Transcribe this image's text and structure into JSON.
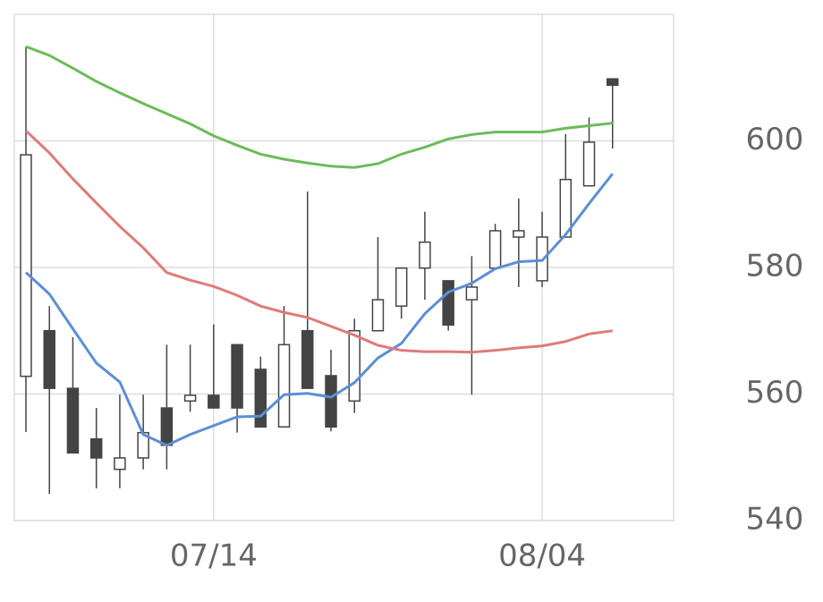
{
  "chart_data": {
    "type": "candlestick",
    "categories": [
      null,
      null,
      null,
      null,
      null,
      null,
      null,
      null,
      "07/14",
      null,
      null,
      null,
      null,
      null,
      null,
      null,
      null,
      null,
      null,
      null,
      null,
      null,
      "08/04",
      null,
      null,
      null
    ],
    "open": [
      562.8,
      570.0,
      560.9,
      552.9,
      548.1,
      549.9,
      557.8,
      558.9,
      559.8,
      567.8,
      563.9,
      554.8,
      570.0,
      562.9,
      558.9,
      570.0,
      573.9,
      579.9,
      577.9,
      574.9,
      579.9,
      584.8,
      577.9,
      584.8,
      592.9,
      609.8
    ],
    "high": [
      614.9,
      573.9,
      569.0,
      557.8,
      559.9,
      559.9,
      567.8,
      567.8,
      571.0,
      567.8,
      565.9,
      573.9,
      592.0,
      567.0,
      571.9,
      584.8,
      579.9,
      588.8,
      577.9,
      581.8,
      586.9,
      590.9,
      588.8,
      601.1,
      603.7,
      609.8
    ],
    "low": [
      554.0,
      544.2,
      550.7,
      545.1,
      545.1,
      548.1,
      548.1,
      557.2,
      557.8,
      553.9,
      554.8,
      554.8,
      560.9,
      554.1,
      557.0,
      570.0,
      571.9,
      574.9,
      570.0,
      559.9,
      579.9,
      576.9,
      576.9,
      584.8,
      592.9,
      598.8
    ],
    "close": [
      597.8,
      560.9,
      550.7,
      549.9,
      549.9,
      553.9,
      551.9,
      559.8,
      557.8,
      557.8,
      554.8,
      567.8,
      560.9,
      554.8,
      570.0,
      574.9,
      579.9,
      584.0,
      570.9,
      576.9,
      585.8,
      585.8,
      584.8,
      593.9,
      599.8,
      608.8
    ],
    "up_color": "#ffffff",
    "down_color": "#444444",
    "wick_color": "#444444",
    "series": [
      {
        "color": "#5b8fd4",
        "values": [
          579.2,
          575.8,
          570.3,
          564.9,
          561.9,
          553.6,
          551.9,
          553.6,
          555.0,
          556.4,
          556.5,
          559.9,
          560.1,
          559.5,
          561.8,
          565.7,
          568.0,
          572.7,
          576.1,
          577.5,
          579.8,
          580.9,
          581.1,
          585.2,
          590.1,
          594.8
        ]
      },
      {
        "color": "#e07a7a",
        "values": [
          601.6,
          598.1,
          594.0,
          590.2,
          586.5,
          583.1,
          579.2,
          578.0,
          577.0,
          575.6,
          573.9,
          572.9,
          572.1,
          570.7,
          569.3,
          567.7,
          566.9,
          566.7,
          566.7,
          566.6,
          566.9,
          567.3,
          567.6,
          568.3,
          569.5,
          570.0
        ]
      },
      {
        "color": "#6cbb5a",
        "values": [
          614.9,
          613.5,
          611.5,
          609.4,
          607.6,
          605.9,
          604.3,
          602.7,
          600.8,
          599.3,
          597.9,
          597.1,
          596.5,
          596.0,
          595.8,
          596.4,
          597.9,
          599.0,
          600.3,
          601.0,
          601.4,
          601.4,
          601.4,
          602.0,
          602.4,
          602.8
        ]
      }
    ],
    "ylim": [
      540,
      620
    ],
    "yticks": [
      540,
      560,
      580,
      600
    ],
    "grid": true
  }
}
